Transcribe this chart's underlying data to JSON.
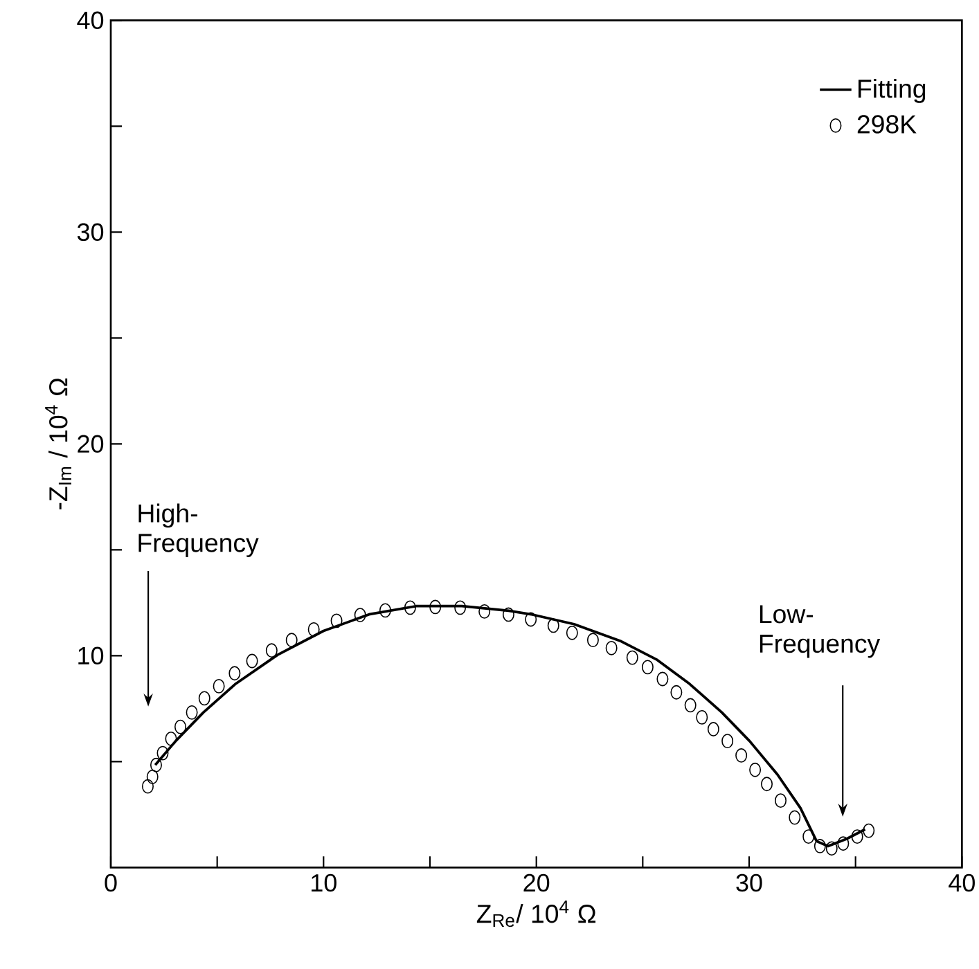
{
  "chart_data": {
    "type": "scatter",
    "xlabel": "Z$_{Re}$/ 10$^{4}$ Ω",
    "ylabel": "-Z$_{Im}$ / 10$^{4}$ Ω",
    "xlim": [
      0,
      40
    ],
    "ylim": [
      0,
      40
    ],
    "xticks": [
      0,
      {
        "value": 5,
        "label": null
      },
      10,
      {
        "value": 15,
        "label": null
      },
      20,
      {
        "value": 25,
        "label": null
      },
      30,
      {
        "value": 35,
        "label": null
      },
      40
    ],
    "yticks": [
      {
        "value": 5,
        "label": null
      },
      10,
      {
        "value": 15,
        "label": null
      },
      20,
      {
        "value": 25,
        "label": null
      },
      30,
      {
        "value": 35,
        "label": null
      },
      40
    ],
    "legend": "top right",
    "grid": false,
    "series": [
      {
        "name": "Fitting",
        "type": "line",
        "color": "#000000",
        "marker": "none",
        "line_style": "solid",
        "x": [
          2.09,
          3.05,
          4.35,
          5.88,
          7.84,
          10.0,
          12.18,
          14.35,
          16.5,
          18.7,
          19.82,
          21.77,
          23.94,
          25.68,
          27.2,
          28.72,
          30.02,
          31.33,
          32.41,
          33.17,
          33.71,
          34.58,
          35.45
        ],
        "values": [
          4.84,
          5.97,
          7.32,
          8.68,
          10.04,
          11.17,
          11.96,
          12.34,
          12.34,
          12.12,
          11.94,
          11.49,
          10.7,
          9.8,
          8.67,
          7.32,
          5.97,
          4.39,
          2.81,
          1.24,
          1.01,
          1.35,
          1.8
        ]
      },
      {
        "name": "298K",
        "color": "#000000",
        "marker": "circle",
        "x": [
          1.74,
          1.96,
          2.13,
          2.44,
          2.83,
          3.27,
          3.81,
          4.4,
          5.08,
          5.82,
          6.64,
          7.56,
          8.5,
          9.54,
          10.61,
          11.72,
          12.9,
          14.07,
          15.25,
          16.42,
          17.56,
          18.69,
          19.74,
          20.8,
          21.68,
          22.66,
          23.53,
          24.51,
          25.23,
          25.93,
          26.58,
          27.24,
          27.78,
          28.32,
          28.98,
          29.63,
          30.28,
          30.83,
          31.48,
          32.14,
          32.79,
          33.33,
          33.88,
          34.42,
          35.08,
          35.62
        ],
        "values": [
          3.83,
          4.28,
          4.84,
          5.4,
          6.08,
          6.64,
          7.32,
          7.99,
          8.56,
          9.17,
          9.75,
          10.25,
          10.74,
          11.24,
          11.65,
          11.92,
          12.14,
          12.27,
          12.3,
          12.27,
          12.09,
          11.94,
          11.71,
          11.42,
          11.08,
          10.74,
          10.36,
          9.91,
          9.46,
          8.9,
          8.27,
          7.66,
          7.09,
          6.53,
          5.97,
          5.29,
          4.61,
          3.94,
          3.16,
          2.36,
          1.46,
          1.01,
          0.9,
          1.13,
          1.46,
          1.74
        ]
      }
    ],
    "annotations": [
      "High- Frequency",
      "Low- Frequency"
    ]
  }
}
